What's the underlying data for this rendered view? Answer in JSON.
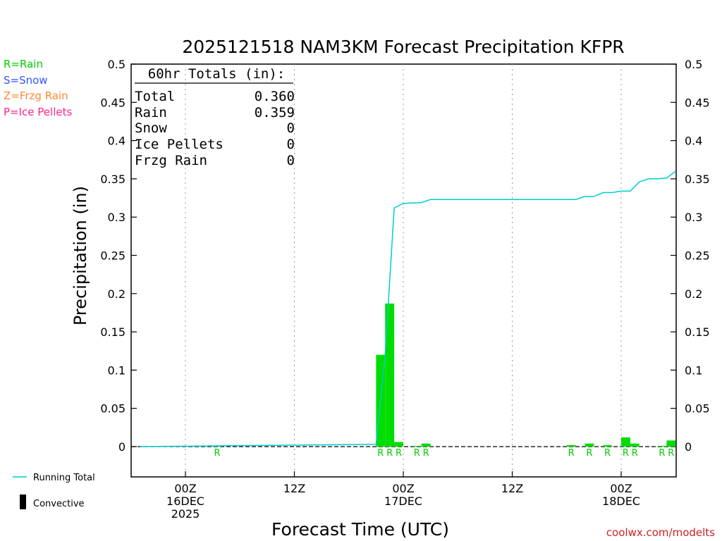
{
  "chart_data": {
    "type": "bar",
    "title": "2025121518 NAM3KM Forecast Precipitation KFPR",
    "xlabel": "Forecast Time (UTC)",
    "ylabel": "Precipitation (in)",
    "ylim": [
      -0.04,
      0.5
    ],
    "xlim_hours": [
      -5,
      55
    ],
    "y_ticks": [
      "0",
      "0.05",
      "0.1",
      "0.15",
      "0.2",
      "0.25",
      "0.3",
      "0.35",
      "0.4",
      "0.45",
      "0.5"
    ],
    "x_ticks": [
      {
        "hour": 0,
        "lines": [
          "00Z",
          "16DEC",
          "2025"
        ]
      },
      {
        "hour": 12,
        "lines": [
          "12Z"
        ]
      },
      {
        "hour": 24,
        "lines": [
          "00Z",
          "17DEC"
        ]
      },
      {
        "hour": 36,
        "lines": [
          "12Z"
        ]
      },
      {
        "hour": 48,
        "lines": [
          "00Z",
          "18DEC"
        ]
      }
    ],
    "grid": "vertical dotted",
    "precip_type_legend": [
      {
        "label": "R=Rain",
        "color": "#00cc00"
      },
      {
        "label": "S=Snow",
        "color": "#3355ff"
      },
      {
        "label": "Z=Frzg Rain",
        "color": "#ff8833"
      },
      {
        "label": "P=Ice Pellets",
        "color": "#ff2288"
      }
    ],
    "totals": {
      "header": "60hr Totals (in):",
      "rows": [
        {
          "label": "Total",
          "value": "0.360"
        },
        {
          "label": "Rain",
          "value": "0.359"
        },
        {
          "label": "Snow",
          "value": "0"
        },
        {
          "label": "Ice Pellets",
          "value": "0"
        },
        {
          "label": "Frzg Rain",
          "value": "0"
        }
      ]
    },
    "bar_color": "#00dd00",
    "line_color": "#00cccc",
    "bars": [
      {
        "hour": 4,
        "value": 0.001,
        "type": "R"
      },
      {
        "hour": 22,
        "value": 0.12,
        "type": "R"
      },
      {
        "hour": 23,
        "value": 0.187,
        "type": "R"
      },
      {
        "hour": 24,
        "value": 0.006,
        "type": "R"
      },
      {
        "hour": 26,
        "value": 0.001,
        "type": "R"
      },
      {
        "hour": 27,
        "value": 0.004,
        "type": "R"
      },
      {
        "hour": 43,
        "value": 0.002,
        "type": "R"
      },
      {
        "hour": 45,
        "value": 0.004,
        "type": "R"
      },
      {
        "hour": 47,
        "value": 0.002,
        "type": "R"
      },
      {
        "hour": 49,
        "value": 0.012,
        "type": "R"
      },
      {
        "hour": 50,
        "value": 0.004,
        "type": "R"
      },
      {
        "hour": 53,
        "value": 0.001,
        "type": "R"
      },
      {
        "hour": 54,
        "value": 0.008,
        "type": "R"
      }
    ],
    "running_total": {
      "name": "Running Total",
      "x": [
        -5,
        4,
        21,
        22,
        23,
        24,
        26,
        27,
        43,
        44,
        45,
        46,
        47,
        48,
        49,
        50,
        51,
        52,
        53,
        54
      ],
      "y": [
        0,
        0.001,
        0.003,
        0.121,
        0.312,
        0.318,
        0.319,
        0.323,
        0.323,
        0.327,
        0.327,
        0.332,
        0.332,
        0.334,
        0.334,
        0.346,
        0.35,
        0.35,
        0.351,
        0.36
      ]
    },
    "series_legend": [
      {
        "label": "Running Total",
        "kind": "line"
      },
      {
        "label": "Convective",
        "kind": "bar"
      }
    ],
    "credit": "coolwx.com/modelts"
  }
}
